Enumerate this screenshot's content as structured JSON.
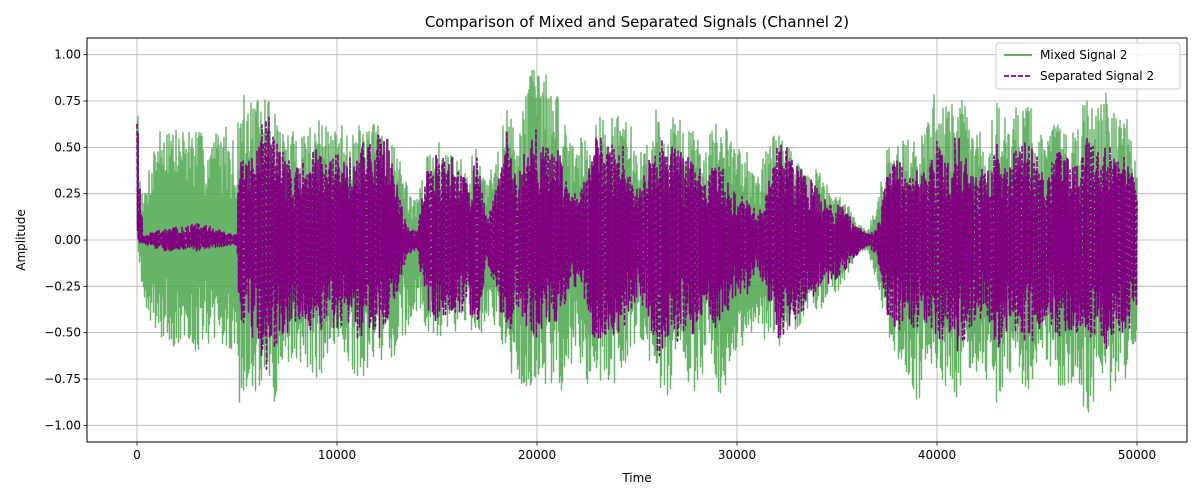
{
  "chart_data": {
    "type": "line",
    "title": "Comparison of Mixed and Separated Signals (Channel 2)",
    "xlabel": "Time",
    "ylabel": "Amplitude",
    "xlim": [
      -2500,
      52500
    ],
    "ylim": [
      -1.09,
      1.09
    ],
    "xticks": [
      0,
      10000,
      20000,
      30000,
      40000,
      50000
    ],
    "xtick_labels": [
      "0",
      "10000",
      "20000",
      "30000",
      "40000",
      "50000"
    ],
    "yticks": [
      -1.0,
      -0.75,
      -0.5,
      -0.25,
      0.0,
      0.25,
      0.5,
      0.75,
      1.0
    ],
    "ytick_labels": [
      "−1.00",
      "−0.75",
      "−0.50",
      "−0.25",
      "0.00",
      "0.25",
      "0.50",
      "0.75",
      "1.00"
    ],
    "grid": true,
    "legend_position": "top-right",
    "sample_count": 50000,
    "series": [
      {
        "name": "Mixed Signal 2",
        "color": "#4ca64c",
        "style": "solid",
        "envelope": {
          "x": [
            0,
            100,
            200,
            300,
            500,
            1000,
            1500,
            2000,
            2500,
            3000,
            3500,
            4000,
            4500,
            5000,
            5100,
            5500,
            6000,
            6500,
            7000,
            7500,
            8000,
            8500,
            9000,
            9500,
            10000,
            10500,
            11000,
            11500,
            12000,
            12500,
            13000,
            13500,
            14000,
            14500,
            15000,
            15500,
            16000,
            16500,
            17000,
            17500,
            18000,
            18500,
            19000,
            19500,
            20000,
            20500,
            21000,
            21500,
            22000,
            22500,
            23000,
            23500,
            24000,
            24500,
            25000,
            25500,
            26000,
            26500,
            27000,
            27500,
            28000,
            28500,
            29000,
            29500,
            30000,
            30500,
            31000,
            31500,
            32000,
            32500,
            33000,
            33500,
            34000,
            34500,
            35000,
            35500,
            36000,
            36500,
            37000,
            37500,
            38000,
            38500,
            39000,
            39500,
            40000,
            40500,
            41000,
            41500,
            42000,
            42500,
            43000,
            43500,
            44000,
            44500,
            45000,
            45500,
            46000,
            46500,
            47000,
            47500,
            48000,
            48500,
            49000,
            49500,
            50000
          ],
          "upper": [
            1.0,
            0.6,
            0.3,
            0.2,
            0.35,
            0.6,
            0.65,
            0.6,
            0.62,
            0.6,
            0.55,
            0.6,
            0.62,
            0.5,
            0.8,
            0.78,
            0.75,
            0.82,
            0.65,
            0.58,
            0.6,
            0.62,
            0.7,
            0.6,
            0.6,
            0.65,
            0.62,
            0.6,
            0.65,
            0.62,
            0.5,
            0.3,
            0.22,
            0.45,
            0.55,
            0.45,
            0.5,
            0.4,
            0.5,
            0.3,
            0.5,
            0.72,
            0.6,
            0.9,
            0.97,
            0.9,
            0.8,
            0.62,
            0.55,
            0.62,
            0.7,
            0.62,
            0.7,
            0.72,
            0.45,
            0.55,
            0.72,
            0.62,
            0.7,
            0.6,
            0.6,
            0.55,
            0.65,
            0.6,
            0.5,
            0.5,
            0.4,
            0.5,
            0.6,
            0.55,
            0.42,
            0.35,
            0.4,
            0.3,
            0.25,
            0.2,
            0.1,
            0.05,
            0.2,
            0.5,
            0.62,
            0.55,
            0.55,
            0.62,
            0.88,
            0.72,
            0.85,
            0.72,
            0.6,
            0.55,
            0.75,
            0.65,
            0.75,
            0.8,
            0.62,
            0.55,
            0.7,
            0.6,
            0.62,
            0.8,
            0.7,
            0.82,
            0.65,
            0.65,
            0.45
          ],
          "lower": [
            0.05,
            -0.1,
            -0.2,
            -0.3,
            -0.4,
            -0.5,
            -0.55,
            -0.6,
            -0.58,
            -0.6,
            -0.55,
            -0.6,
            -0.62,
            -0.55,
            -0.93,
            -0.8,
            -0.85,
            -0.75,
            -0.99,
            -0.7,
            -0.65,
            -0.7,
            -0.75,
            -0.7,
            -0.65,
            -0.7,
            -0.75,
            -0.72,
            -0.6,
            -0.7,
            -0.6,
            -0.5,
            -0.4,
            -0.5,
            -0.55,
            -0.48,
            -0.5,
            -0.45,
            -0.55,
            -0.45,
            -0.5,
            -0.7,
            -0.8,
            -0.82,
            -0.75,
            -0.78,
            -0.9,
            -0.72,
            -0.6,
            -0.82,
            -0.85,
            -0.75,
            -0.78,
            -0.65,
            -0.55,
            -0.6,
            -0.8,
            -0.85,
            -0.75,
            -0.8,
            -0.82,
            -0.65,
            -0.85,
            -0.8,
            -0.6,
            -0.55,
            -0.5,
            -0.55,
            -0.6,
            -0.5,
            -0.5,
            -0.4,
            -0.42,
            -0.35,
            -0.3,
            -0.2,
            -0.1,
            -0.05,
            -0.25,
            -0.5,
            -0.7,
            -0.75,
            -0.9,
            -0.7,
            -0.82,
            -0.78,
            -0.85,
            -0.75,
            -0.72,
            -0.78,
            -0.88,
            -0.75,
            -0.8,
            -0.82,
            -0.78,
            -0.7,
            -0.78,
            -0.8,
            -0.82,
            -0.99,
            -0.88,
            -0.85,
            -0.78,
            -0.75,
            -0.55
          ]
        }
      },
      {
        "name": "Separated Signal 2",
        "color": "#800080",
        "style": "dashed",
        "envelope": {
          "x": [
            0,
            100,
            200,
            300,
            500,
            1000,
            1500,
            2000,
            2500,
            3000,
            3500,
            4000,
            4500,
            5000,
            5100,
            5500,
            6000,
            6500,
            7000,
            7500,
            8000,
            8500,
            9000,
            9500,
            10000,
            10500,
            11000,
            11500,
            12000,
            12500,
            13000,
            13500,
            14000,
            14500,
            15000,
            15500,
            16000,
            16500,
            17000,
            17500,
            18000,
            18500,
            19000,
            19500,
            20000,
            20500,
            21000,
            21500,
            22000,
            22500,
            23000,
            23500,
            24000,
            24500,
            25000,
            25500,
            26000,
            26500,
            27000,
            27500,
            28000,
            28500,
            29000,
            29500,
            30000,
            30500,
            31000,
            31500,
            32000,
            32500,
            33000,
            33500,
            34000,
            34500,
            35000,
            35500,
            36000,
            36500,
            37000,
            37500,
            38000,
            38500,
            39000,
            39500,
            40000,
            40500,
            41000,
            41500,
            42000,
            42500,
            43000,
            43500,
            44000,
            44500,
            45000,
            45500,
            46000,
            46500,
            47000,
            47500,
            48000,
            48500,
            49000,
            49500,
            50000
          ],
          "upper": [
            1.0,
            0.3,
            0.26,
            0.02,
            0.03,
            0.05,
            0.06,
            0.07,
            0.08,
            0.09,
            0.08,
            0.06,
            0.04,
            0.03,
            0.5,
            0.4,
            0.55,
            0.7,
            0.55,
            0.45,
            0.4,
            0.45,
            0.5,
            0.4,
            0.48,
            0.45,
            0.5,
            0.55,
            0.6,
            0.55,
            0.3,
            0.08,
            0.05,
            0.4,
            0.55,
            0.4,
            0.5,
            0.3,
            0.45,
            0.1,
            0.3,
            0.6,
            0.3,
            0.55,
            0.6,
            0.5,
            0.52,
            0.3,
            0.25,
            0.35,
            0.6,
            0.5,
            0.55,
            0.48,
            0.3,
            0.4,
            0.55,
            0.55,
            0.5,
            0.45,
            0.45,
            0.3,
            0.5,
            0.35,
            0.3,
            0.25,
            0.15,
            0.3,
            0.55,
            0.5,
            0.45,
            0.35,
            0.3,
            0.2,
            0.22,
            0.15,
            0.08,
            0.03,
            0.06,
            0.35,
            0.45,
            0.35,
            0.4,
            0.35,
            0.55,
            0.4,
            0.6,
            0.45,
            0.4,
            0.38,
            0.55,
            0.45,
            0.5,
            0.55,
            0.45,
            0.35,
            0.5,
            0.45,
            0.4,
            0.55,
            0.5,
            0.55,
            0.45,
            0.45,
            0.3
          ],
          "lower": [
            0.1,
            -0.02,
            -0.02,
            -0.02,
            -0.03,
            -0.05,
            -0.06,
            -0.06,
            -0.05,
            -0.06,
            -0.05,
            -0.04,
            -0.03,
            -0.03,
            -0.4,
            -0.5,
            -0.55,
            -0.76,
            -0.6,
            -0.5,
            -0.45,
            -0.5,
            -0.55,
            -0.45,
            -0.5,
            -0.45,
            -0.55,
            -0.5,
            -0.55,
            -0.45,
            -0.3,
            -0.08,
            -0.05,
            -0.4,
            -0.5,
            -0.42,
            -0.45,
            -0.35,
            -0.5,
            -0.12,
            -0.3,
            -0.55,
            -0.35,
            -0.5,
            -0.55,
            -0.45,
            -0.48,
            -0.3,
            -0.25,
            -0.4,
            -0.6,
            -0.5,
            -0.52,
            -0.45,
            -0.3,
            -0.4,
            -0.65,
            -0.6,
            -0.55,
            -0.5,
            -0.52,
            -0.35,
            -0.55,
            -0.4,
            -0.3,
            -0.3,
            -0.15,
            -0.3,
            -0.55,
            -0.5,
            -0.45,
            -0.35,
            -0.3,
            -0.25,
            -0.22,
            -0.15,
            -0.08,
            -0.03,
            -0.08,
            -0.4,
            -0.5,
            -0.45,
            -0.5,
            -0.45,
            -0.6,
            -0.5,
            -0.65,
            -0.5,
            -0.45,
            -0.45,
            -0.6,
            -0.5,
            -0.55,
            -0.6,
            -0.5,
            -0.45,
            -0.55,
            -0.5,
            -0.5,
            -0.6,
            -0.55,
            -0.6,
            -0.5,
            -0.5,
            -0.4
          ]
        }
      }
    ]
  }
}
